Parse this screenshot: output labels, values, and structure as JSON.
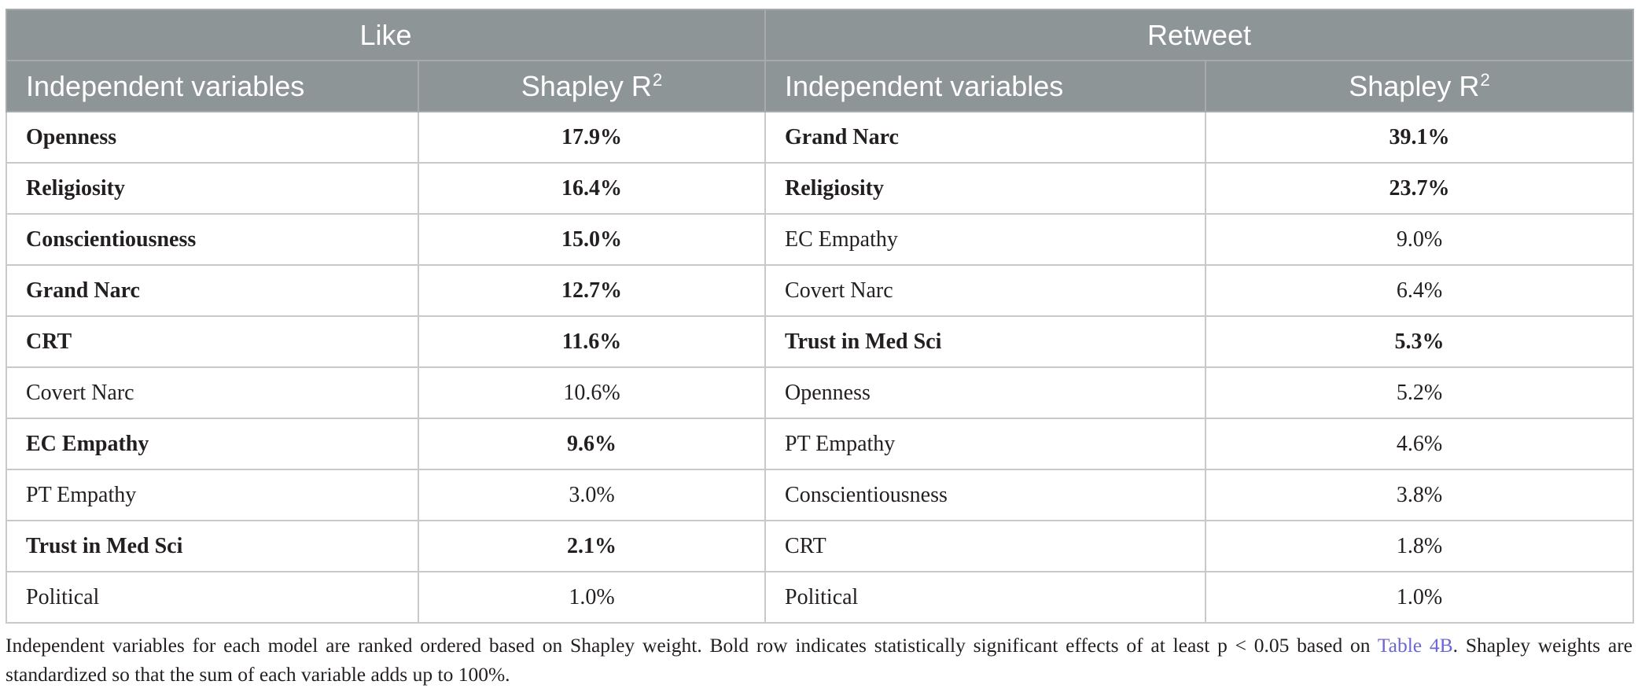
{
  "colors": {
    "header_bg": "#8e9596",
    "header_text": "#ffffff",
    "border": "#c9c9c9",
    "text": "#231f20",
    "link": "#6b67d6"
  },
  "table": {
    "groups": [
      {
        "label": "Like",
        "variable_header": "Independent variables",
        "value_header": "Shapley R",
        "value_header_sup": "2",
        "rows": [
          {
            "variable": "Openness",
            "value": "17.9%",
            "significant": true
          },
          {
            "variable": "Religiosity",
            "value": "16.4%",
            "significant": true
          },
          {
            "variable": "Conscientiousness",
            "value": "15.0%",
            "significant": true
          },
          {
            "variable": "Grand Narc",
            "value": "12.7%",
            "significant": true
          },
          {
            "variable": "CRT",
            "value": "11.6%",
            "significant": true
          },
          {
            "variable": "Covert Narc",
            "value": "10.6%",
            "significant": false
          },
          {
            "variable": "EC Empathy",
            "value": "9.6%",
            "significant": true
          },
          {
            "variable": "PT Empathy",
            "value": "3.0%",
            "significant": false
          },
          {
            "variable": "Trust in Med Sci",
            "value": "2.1%",
            "significant": true
          },
          {
            "variable": "Political",
            "value": "1.0%",
            "significant": false
          }
        ]
      },
      {
        "label": "Retweet",
        "variable_header": "Independent variables",
        "value_header": "Shapley R",
        "value_header_sup": "2",
        "rows": [
          {
            "variable": "Grand Narc",
            "value": "39.1%",
            "significant": true
          },
          {
            "variable": "Religiosity",
            "value": "23.7%",
            "significant": true
          },
          {
            "variable": "EC Empathy",
            "value": "9.0%",
            "significant": false
          },
          {
            "variable": "Covert Narc",
            "value": "6.4%",
            "significant": false
          },
          {
            "variable": "Trust in Med Sci",
            "value": "5.3%",
            "significant": true
          },
          {
            "variable": "Openness",
            "value": "5.2%",
            "significant": false
          },
          {
            "variable": "PT Empathy",
            "value": "4.6%",
            "significant": false
          },
          {
            "variable": "Conscientiousness",
            "value": "3.8%",
            "significant": false
          },
          {
            "variable": "CRT",
            "value": "1.8%",
            "significant": false
          },
          {
            "variable": "Political",
            "value": "1.0%",
            "significant": false
          }
        ]
      }
    ]
  },
  "caption": {
    "text_before": "Independent variables for each model are ranked ordered based on Shapley weight. Bold row indicates statistically significant effects of at least p < 0.05 based on ",
    "link_text": "Table 4B",
    "text_after": ". Shapley weights are standardized so that the sum of each variable adds up to 100%."
  }
}
